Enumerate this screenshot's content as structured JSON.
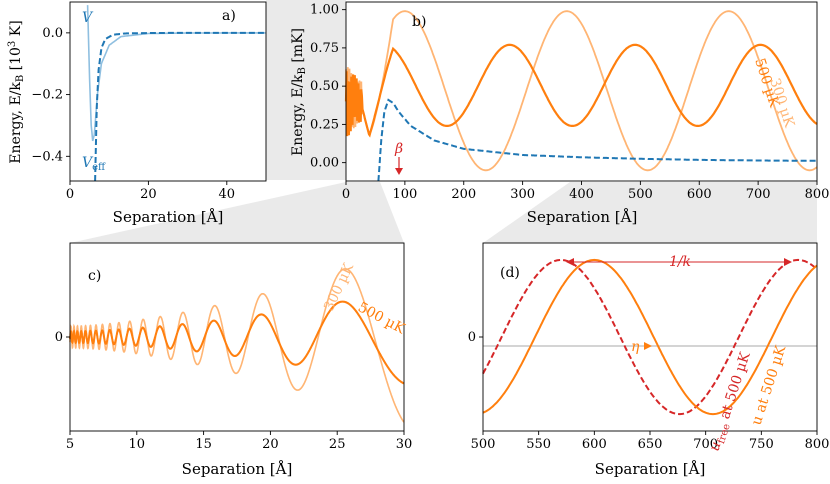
{
  "colors": {
    "potential": "#1f77b4",
    "wave500": "#ff7f0e",
    "wave300": "#ffb574",
    "free": "#d62728",
    "zoom": "#cfcfcf",
    "grid": "#bbbbbb"
  },
  "chart_data": [
    {
      "id": "a",
      "type": "line",
      "panel_label": "a)",
      "xlabel": "Separation [Å]",
      "ylabel": "Energy, E/k_B [10^3 K]",
      "xlim": [
        0,
        50
      ],
      "ylim": [
        -0.48,
        0.1
      ],
      "xticks": [
        "0",
        "20",
        "40"
      ],
      "yticks": [
        "0.0",
        "−0.2",
        "−0.4"
      ],
      "xtick_values": [
        0,
        20,
        40
      ],
      "ytick_values": [
        0.0,
        -0.2,
        -0.4
      ],
      "series": [
        {
          "name": "V",
          "style": "solid",
          "x": [
            4.5,
            5.0,
            5.4,
            5.8,
            6.2,
            7,
            8,
            10,
            13,
            20,
            30,
            50
          ],
          "y": [
            0.09,
            -0.15,
            -0.3,
            -0.35,
            -0.33,
            -0.2,
            -0.1,
            -0.04,
            -0.012,
            -0.002,
            -0.0005,
            0
          ]
        },
        {
          "name": "V_eff",
          "style": "dashed",
          "x": [
            6.4,
            6.8,
            7.3,
            8.0,
            9,
            11,
            14,
            20,
            30,
            50
          ],
          "y": [
            -0.48,
            -0.25,
            -0.12,
            -0.05,
            -0.02,
            -0.006,
            -0.002,
            -0.0005,
            0,
            0
          ]
        }
      ],
      "annotations": [
        "V",
        "V_eff"
      ]
    },
    {
      "id": "b",
      "type": "line",
      "panel_label": "b)",
      "xlabel": "Separation [Å]",
      "ylabel": "Energy, E/k_B [mK]",
      "xlim": [
        0,
        800
      ],
      "ylim": [
        -0.12,
        1.05
      ],
      "xticks": [
        "0",
        "100",
        "200",
        "300",
        "400",
        "500",
        "600",
        "700",
        "800"
      ],
      "yticks": [
        "0.00",
        "0.25",
        "0.50",
        "0.75",
        "1.00"
      ],
      "xtick_values": [
        0,
        100,
        200,
        300,
        400,
        500,
        600,
        700,
        800
      ],
      "ytick_values": [
        0.0,
        0.25,
        0.5,
        0.75,
        1.0
      ],
      "series": [
        {
          "name": "500 µK",
          "style": "solid",
          "wavelength_A": 213,
          "min_mK": 0.24,
          "max_mK": 0.77,
          "peak_x": [
            65,
            280,
            493,
            706
          ]
        },
        {
          "name": "300 µK",
          "style": "solid",
          "wavelength_A": 275,
          "min_mK": -0.05,
          "max_mK": 0.99,
          "peak_x": [
            100,
            400,
            675
          ]
        },
        {
          "name": "V_eff",
          "style": "dashed",
          "x": [
            55,
            60,
            65,
            72,
            80,
            90,
            110,
            150,
            200,
            300,
            400,
            500,
            600,
            700,
            800
          ],
          "y": [
            -0.12,
            0.15,
            0.33,
            0.41,
            0.39,
            0.33,
            0.24,
            0.145,
            0.09,
            0.05,
            0.035,
            0.025,
            0.018,
            0.014,
            0.012
          ]
        }
      ],
      "annotations": [
        "β",
        "500 µK",
        "300 µK"
      ]
    },
    {
      "id": "c",
      "type": "line",
      "panel_label": "c)",
      "xlabel": "Separation [Å]",
      "xlim": [
        5,
        30
      ],
      "ylim": [
        -1,
        1
      ],
      "xticks": [
        "5",
        "10",
        "15",
        "20",
        "25",
        "30"
      ],
      "yticks": [
        "0"
      ],
      "xtick_values": [
        5,
        10,
        15,
        20,
        25,
        30
      ],
      "ytick_values": [
        0
      ],
      "series": [
        {
          "name": "300 µK",
          "style": "solid"
        },
        {
          "name": "500 µK",
          "style": "solid"
        }
      ],
      "annotations": [
        "300 µK",
        "500 µK"
      ]
    },
    {
      "id": "d",
      "type": "line",
      "panel_label": "(d)",
      "xlabel": "Separation [Å]",
      "xlim": [
        500,
        800
      ],
      "ylim": [
        -1,
        1
      ],
      "xticks": [
        "500",
        "550",
        "600",
        "650",
        "700",
        "750",
        "800"
      ],
      "yticks": [
        "0"
      ],
      "xtick_values": [
        500,
        550,
        600,
        650,
        700,
        750,
        800
      ],
      "ytick_values": [
        0
      ],
      "series": [
        {
          "name": "u at 500 µK",
          "style": "solid",
          "wavelength_A": 213,
          "peak_x": 600
        },
        {
          "name": "u_free at 500 µK",
          "style": "dashed",
          "wavelength_A": 213,
          "peak_x": 570
        }
      ],
      "annotations": [
        "1/k",
        "η",
        "u_free at 500 µK",
        "u at 500 µK"
      ]
    }
  ],
  "labels": {
    "a_V": "V",
    "a_Veff_main": "V",
    "a_Veff_sub": "eff",
    "b_beta": "β",
    "b_500": "500 µK",
    "b_300": "300 µK",
    "c_300": "300 µK",
    "c_500": "500 µK",
    "d_k": "1/k",
    "d_eta": "η",
    "d_ufree_main": "u",
    "d_ufree_sub": "free",
    "d_ufree_rest": " at 500 µK",
    "d_u": "u at 500 µK",
    "ylabel_a_pre": "Energy, E/k",
    "ylabel_sub": "B",
    "ylabel_a_post": " [10",
    "ylabel_a_exp": "3",
    "ylabel_a_end": " K]",
    "ylabel_b_post": " [mK]"
  }
}
